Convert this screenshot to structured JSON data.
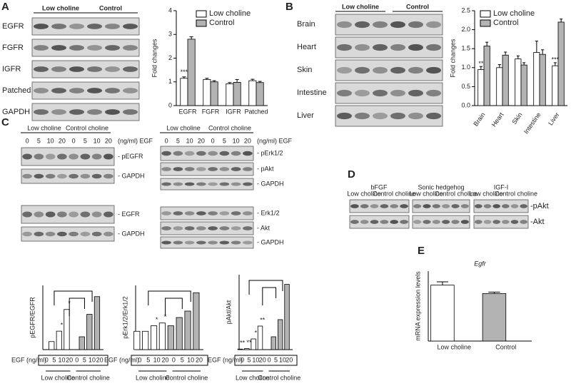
{
  "panels": {
    "A": {
      "letter": "A",
      "groups": [
        "Low choline",
        "Control"
      ],
      "rows": [
        "EGFR",
        "FGFR",
        "IGFR",
        "Patched",
        "GAPDH"
      ]
    },
    "B": {
      "letter": "B",
      "groups": [
        "Low choline",
        "Control"
      ],
      "rows": [
        "Brain",
        "Heart",
        "Skin",
        "Intestine",
        "Liver"
      ]
    },
    "C": {
      "letter": "C",
      "left": {
        "groups": [
          "Low choline",
          "Control choline"
        ],
        "unit": "(ng/ml) EGF",
        "lanes": [
          "0",
          "5",
          "10",
          "20",
          "0",
          "5",
          "10",
          "20"
        ],
        "rows": [
          "- pEGFR",
          "- GAPDH",
          "- EGFR",
          "- GAPDH"
        ]
      },
      "right": {
        "groups": [
          "Low choline",
          "Control choline"
        ],
        "unit": "(ng/ml) EGF",
        "lanes": [
          "0",
          "5",
          "10",
          "20",
          "0",
          "5",
          "10",
          "20"
        ],
        "rows": [
          "- pErk1/2",
          "- pAkt",
          "- GAPDH",
          "- Erk1/2",
          "- Akt",
          "- GAPDH"
        ]
      }
    },
    "D": {
      "letter": "D",
      "groups": [
        "bFGF",
        "Sonic hedgehog",
        "IGF-I"
      ],
      "subgroups": [
        "Low choline",
        "Control choline"
      ],
      "rows": [
        "-pAkt",
        "-Akt"
      ]
    },
    "E": {
      "letter": "E"
    }
  },
  "chart_data": [
    {
      "type": "bar",
      "ylabel": "Fold changes",
      "categories": [
        "EGFR",
        "FGFR",
        "IGFR",
        "Patched"
      ],
      "series": [
        {
          "name": "Low choline",
          "color": "#ffffff",
          "values": [
            1.15,
            1.1,
            0.92,
            1.05
          ],
          "errors": [
            0.06,
            0.05,
            0.05,
            0.06
          ]
        },
        {
          "name": "Control",
          "color": "#b3b3b3",
          "values": [
            2.8,
            1.0,
            0.98,
            0.97
          ],
          "errors": [
            0.1,
            0.05,
            0.12,
            0.05
          ]
        }
      ],
      "annotations": [
        "***"
      ],
      "ylim": [
        0,
        4
      ],
      "yticks": [
        0,
        1,
        2,
        3,
        4
      ],
      "legend": "top-right",
      "rotate_labels": false
    },
    {
      "type": "bar",
      "ylabel": "Fold changes",
      "categories": [
        "Brain",
        "Heart",
        "Skin",
        "Intestine",
        "Liver"
      ],
      "series": [
        {
          "name": "Low choline",
          "color": "#ffffff",
          "values": [
            0.95,
            1.0,
            1.23,
            1.4,
            1.05
          ],
          "errors": [
            0.08,
            0.08,
            0.08,
            0.3,
            0.08
          ]
        },
        {
          "name": "Control",
          "color": "#b3b3b3",
          "values": [
            1.57,
            1.33,
            1.07,
            1.35,
            2.2
          ],
          "errors": [
            0.1,
            0.08,
            0.06,
            0.12,
            0.08
          ]
        }
      ],
      "annotations": [
        "**",
        "",
        "",
        "",
        "***"
      ],
      "ylim": [
        0,
        2.5
      ],
      "yticks": [
        {
          "value": 0,
          "label": "0.0"
        },
        0.5,
        {
          "value": 1,
          "label": "1.0"
        },
        1.5,
        {
          "value": 2,
          "label": "2.0"
        },
        2.5
      ],
      "legend": "top-left",
      "rotate_labels": true
    },
    {
      "type": "bar",
      "ylabel": "pEGFR/EGFR",
      "xlabel": "EGF (ng/ml)",
      "categories": [
        "0",
        "5",
        "10",
        "20",
        "0",
        "5",
        "10",
        "20"
      ],
      "values": [
        0,
        1.0,
        2.3,
        5.0,
        0,
        1.6,
        4.4,
        6.6
      ],
      "colors": [
        "#ffffff",
        "#ffffff",
        "#ffffff",
        "#ffffff",
        "#b3b3b3",
        "#b3b3b3",
        "#b3b3b3",
        "#b3b3b3"
      ],
      "annotations": [
        "",
        "",
        "*",
        "*",
        "",
        "",
        "",
        ""
      ],
      "groups": [
        "Low choline",
        "Control choline"
      ],
      "ylim": [
        0,
        8
      ]
    },
    {
      "type": "bar",
      "ylabel": "pErk1/2/Erk1/2",
      "xlabel": "EGF (ng/ml)",
      "categories": [
        "0",
        "5",
        "10",
        "20",
        "0",
        "5",
        "10",
        "20"
      ],
      "values": [
        1.0,
        1.0,
        1.3,
        1.45,
        1.3,
        1.75,
        2.1,
        3.1
      ],
      "colors": [
        "#ffffff",
        "#ffffff",
        "#ffffff",
        "#ffffff",
        "#b3b3b3",
        "#b3b3b3",
        "#b3b3b3",
        "#b3b3b3"
      ],
      "annotations": [
        "",
        "",
        "*",
        "*",
        "",
        "",
        "",
        ""
      ],
      "groups": [
        "Low choline",
        "Control choline"
      ],
      "ylim": [
        0,
        3.5
      ]
    },
    {
      "type": "bar",
      "ylabel": "pAkt/Akt",
      "xlabel": "EGF (ng/ml)",
      "categories": [
        "0",
        "5",
        "10",
        "20",
        "0",
        "5",
        "10",
        "20"
      ],
      "values": [
        0.05,
        0.1,
        1.0,
        2.2,
        0,
        1.2,
        2.8,
        6.1
      ],
      "colors": [
        "#ffffff",
        "#ffffff",
        "#ffffff",
        "#ffffff",
        "#b3b3b3",
        "#b3b3b3",
        "#b3b3b3",
        "#b3b3b3"
      ],
      "annotations": [
        "**",
        "**",
        "*",
        "**",
        "",
        "",
        "",
        ""
      ],
      "groups": [
        "Low choline",
        "Control choline"
      ],
      "ylim": [
        0,
        7
      ]
    },
    {
      "type": "bar",
      "title": "Egfr",
      "ylabel": "mRNA expression levels",
      "categories": [
        "Low choline",
        "Control"
      ],
      "values": [
        1.2,
        1.02
      ],
      "errors": [
        0.07,
        0.03
      ],
      "colors": [
        "#ffffff",
        "#b3b3b3"
      ],
      "ylim": [
        0,
        1.5
      ]
    }
  ]
}
